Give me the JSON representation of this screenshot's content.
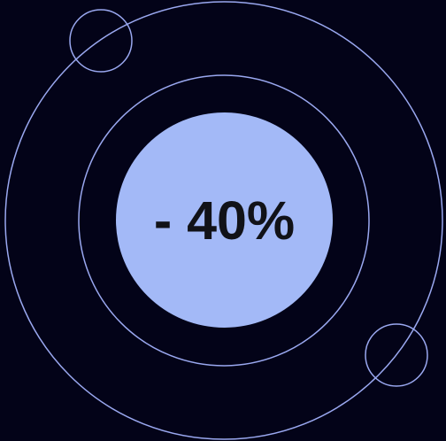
{
  "badge": {
    "text": "- 40%"
  },
  "colors": {
    "background": "#030318",
    "ring": "#9aa8f0",
    "badge_fill": "#a3b9f7",
    "badge_text": "#111218"
  }
}
